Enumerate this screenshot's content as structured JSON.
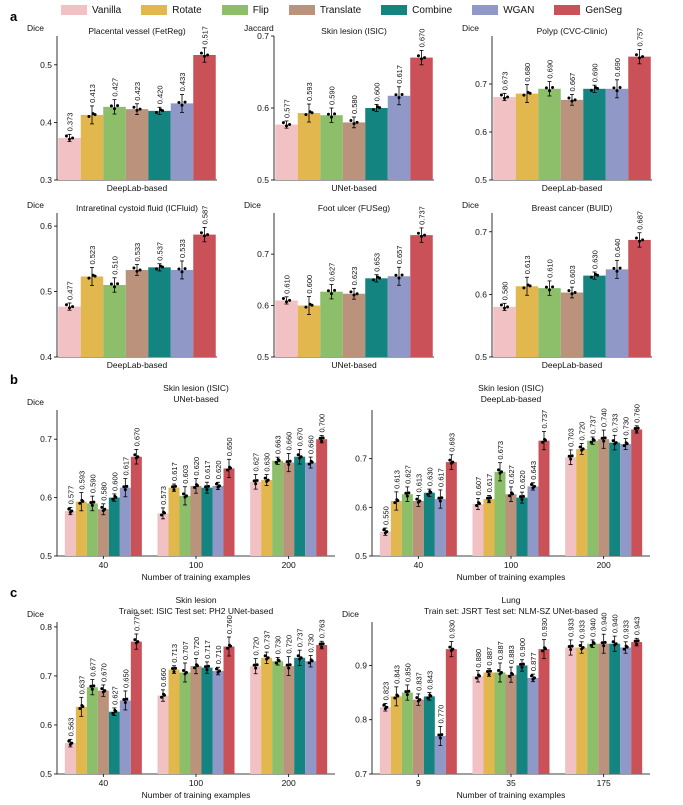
{
  "legend": [
    {
      "name": "Vanilla",
      "color": "#F1C1C4"
    },
    {
      "name": "Rotate",
      "color": "#E2B74D"
    },
    {
      "name": "Flip",
      "color": "#8DBE6A"
    },
    {
      "name": "Translate",
      "color": "#BB927B"
    },
    {
      "name": "Combine",
      "color": "#13847F"
    },
    {
      "name": "WGAN",
      "color": "#9098C8"
    },
    {
      "name": "GenSeg",
      "color": "#C95157"
    }
  ],
  "panel_letters": {
    "a": "a",
    "b": "b",
    "c": "c"
  },
  "chart_data": [
    {
      "type": "bar",
      "panel": "a",
      "title": "Placental vessel (FetReg)",
      "ylabel": "Dice",
      "xlabel": "DeepLab-based",
      "ylim": [
        0.3,
        0.55
      ],
      "yticks": [
        0.3,
        0.4,
        0.5
      ],
      "ytick_labels": [
        "0.3",
        "0.4",
        "0.5"
      ],
      "values": [
        0.373,
        0.413,
        0.427,
        0.423,
        0.42,
        0.433,
        0.517
      ],
      "labels": [
        "0.373",
        "0.413",
        "0.427",
        "0.423",
        "0.420",
        "0.433",
        "0.517"
      ]
    },
    {
      "type": "bar",
      "panel": "a",
      "title": "Skin lesion (ISIC)",
      "ylabel": "Jaccard",
      "xlabel": "UNet-based",
      "ylim": [
        0.5,
        0.7
      ],
      "yticks": [
        0.5,
        0.6,
        0.7
      ],
      "ytick_labels": [
        "0.5",
        "0.6",
        "0.7"
      ],
      "values": [
        0.577,
        0.593,
        0.59,
        0.58,
        0.6,
        0.617,
        0.67
      ],
      "labels": [
        "0.577",
        "0.593",
        "0.590",
        "0.580",
        "0.600",
        "0.617",
        "0.670"
      ]
    },
    {
      "type": "bar",
      "panel": "a",
      "title": "Polyp (CVC-Clinic)",
      "ylabel": "Dice",
      "xlabel": "DeepLab-based",
      "ylim": [
        0.5,
        0.8
      ],
      "yticks": [
        0.5,
        0.6,
        0.7
      ],
      "ytick_labels": [
        "0.5",
        "0.6",
        "0.7"
      ],
      "values": [
        0.673,
        0.68,
        0.69,
        0.667,
        0.69,
        0.69,
        0.757
      ],
      "labels": [
        "0.673",
        "0.680",
        "0.690",
        "0.667",
        "0.690",
        "0.690",
        "0.757"
      ]
    },
    {
      "type": "bar",
      "panel": "a",
      "title": "Intraretinal cystoid fluid (ICFluid)",
      "ylabel": "Dice",
      "xlabel": "DeepLab-based",
      "ylim": [
        0.4,
        0.62
      ],
      "yticks": [
        0.4,
        0.5,
        0.6
      ],
      "ytick_labels": [
        "0.4",
        "0.5",
        "0.6"
      ],
      "values": [
        0.477,
        0.523,
        0.51,
        0.533,
        0.537,
        0.533,
        0.587
      ],
      "labels": [
        "0.477",
        "0.523",
        "0.510",
        "0.533",
        "0.537",
        "0.533",
        "0.587"
      ]
    },
    {
      "type": "bar",
      "panel": "a",
      "title": "Foot ulcer (FUSeg)",
      "ylabel": "Dice",
      "xlabel": "UNet-based",
      "ylim": [
        0.5,
        0.78
      ],
      "yticks": [
        0.5,
        0.6,
        0.7
      ],
      "ytick_labels": [
        "0.5",
        "0.6",
        "0.7"
      ],
      "values": [
        0.61,
        0.6,
        0.627,
        0.623,
        0.653,
        0.657,
        0.737
      ],
      "labels": [
        "0.610",
        "0.600",
        "0.627",
        "0.623",
        "0.653",
        "0.657",
        "0.737"
      ]
    },
    {
      "type": "bar",
      "panel": "a",
      "title": "Breast cancer (BUID)",
      "ylabel": "Dice",
      "xlabel": "DeepLab-based",
      "ylim": [
        0.5,
        0.73
      ],
      "yticks": [
        0.5,
        0.6,
        0.7
      ],
      "ytick_labels": [
        "0.5",
        "0.6",
        "0.7"
      ],
      "values": [
        0.58,
        0.613,
        0.61,
        0.603,
        0.63,
        0.64,
        0.687
      ],
      "labels": [
        "0.580",
        "0.613",
        "0.610",
        "0.603",
        "0.630",
        "0.640",
        "0.687"
      ]
    },
    {
      "type": "bar",
      "panel": "b",
      "title": "Skin lesion (ISIC)",
      "subtitle": "UNet-based",
      "ylabel": "Dice",
      "xlabel": "Number of training examples",
      "ylim": [
        0.5,
        0.75
      ],
      "yticks": [
        0.5,
        0.6,
        0.7
      ],
      "ytick_labels": [
        "0.5",
        "0.6",
        "0.7"
      ],
      "categories": [
        "40",
        "100",
        "200"
      ],
      "groups": [
        [
          0.577,
          0.593,
          0.59,
          0.58,
          0.6,
          0.617,
          0.67
        ],
        [
          0.573,
          0.617,
          0.603,
          0.62,
          0.617,
          0.62,
          0.65
        ],
        [
          0.627,
          0.63,
          0.663,
          0.66,
          0.67,
          0.66,
          0.7
        ]
      ],
      "group_labels": [
        [
          "0.577",
          "0.593",
          "0.590",
          "0.580",
          "0.600",
          "0.617",
          "0.670"
        ],
        [
          "0.573",
          "0.617",
          "0.603",
          "0.620",
          "0.617",
          "0.620",
          "0.650"
        ],
        [
          "0.627",
          "0.630",
          "0.663",
          "0.660",
          "0.670",
          "0.660",
          "0.700"
        ]
      ]
    },
    {
      "type": "bar",
      "panel": "b",
      "title": "Skin lesion (ISIC)",
      "subtitle": "DeepLab-based",
      "ylabel": "",
      "xlabel": "Number of training examples",
      "ylim": [
        0.5,
        0.8
      ],
      "yticks": [
        0.5,
        0.6,
        0.7
      ],
      "ytick_labels": [
        "0.5",
        "0.6",
        "0.7"
      ],
      "categories": [
        "40",
        "100",
        "200"
      ],
      "groups": [
        [
          0.55,
          0.613,
          0.627,
          0.613,
          0.63,
          0.617,
          0.693
        ],
        [
          0.607,
          0.617,
          0.673,
          0.627,
          0.62,
          0.643,
          0.737
        ],
        [
          0.703,
          0.72,
          0.737,
          0.74,
          0.733,
          0.73,
          0.76
        ]
      ],
      "group_labels": [
        [
          "0.550",
          "0.613",
          "0.627",
          "0.613",
          "0.630",
          "0.617",
          "0.693"
        ],
        [
          "0.607",
          "0.617",
          "0.673",
          "0.627",
          "0.620",
          "0.643",
          "0.737"
        ],
        [
          "0.703",
          "0.720",
          "0.737",
          "0.740",
          "0.733",
          "0.730",
          "0.760"
        ]
      ]
    },
    {
      "type": "bar",
      "panel": "c",
      "title": "Skin lesion",
      "subtitle": "Train set: ISIC Test set: PH2 UNet-based",
      "ylabel": "Dice",
      "xlabel": "Number of training examples",
      "ylim": [
        0.5,
        0.81
      ],
      "yticks": [
        0.5,
        0.6,
        0.7,
        0.8
      ],
      "ytick_labels": [
        "0.5",
        "0.6",
        "0.7",
        "0.8"
      ],
      "categories": [
        "40",
        "100",
        "200"
      ],
      "groups": [
        [
          0.563,
          0.637,
          0.677,
          0.67,
          0.627,
          0.65,
          0.77
        ],
        [
          0.66,
          0.713,
          0.707,
          0.72,
          0.717,
          0.71,
          0.76
        ],
        [
          0.72,
          0.737,
          0.73,
          0.72,
          0.737,
          0.73,
          0.763
        ]
      ],
      "group_labels": [
        [
          "0.563",
          "0.637",
          "0.677",
          "0.670",
          "0.627",
          "0.650",
          "0.770"
        ],
        [
          "0.660",
          "0.713",
          "0.707",
          "0.720",
          "0.717",
          "0.710",
          "0.760"
        ],
        [
          "0.720",
          "0.737",
          "0.730",
          "0.720",
          "0.737",
          "0.730",
          "0.763"
        ]
      ]
    },
    {
      "type": "bar",
      "panel": "c",
      "title": "Lung",
      "subtitle": "Train set: JSRT Test set: NLM-SZ UNet-based",
      "ylabel": "Dice",
      "xlabel": "Number of training examples",
      "ylim": [
        0.7,
        0.98
      ],
      "yticks": [
        0.7,
        0.8,
        0.9
      ],
      "ytick_labels": [
        "0.7",
        "0.8",
        "0.9"
      ],
      "categories": [
        "9",
        "35",
        "175"
      ],
      "groups": [
        [
          0.823,
          0.843,
          0.85,
          0.837,
          0.843,
          0.77,
          0.93
        ],
        [
          0.88,
          0.887,
          0.887,
          0.883,
          0.9,
          0.877,
          0.93
        ],
        [
          0.933,
          0.933,
          0.94,
          0.94,
          0.94,
          0.933,
          0.943
        ]
      ],
      "group_labels": [
        [
          "0.823",
          "0.843",
          "0.850",
          "0.837",
          "0.843",
          "0.770",
          "0.930"
        ],
        [
          "0.880",
          "0.887",
          "0.887",
          "0.883",
          "0.900",
          "0.877",
          "0.930"
        ],
        [
          "0.933",
          "0.933",
          "0.940",
          "0.940",
          "0.940",
          "0.933",
          "0.943"
        ]
      ]
    }
  ]
}
